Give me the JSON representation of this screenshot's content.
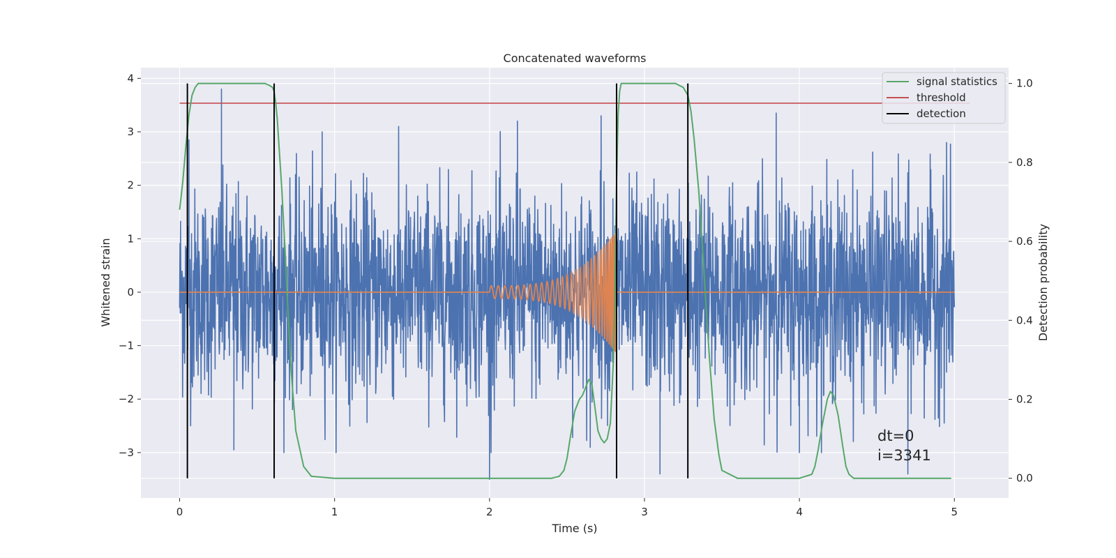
{
  "chart_data": {
    "type": "line",
    "title": "Concatenated waveforms",
    "xlabel": "Time (s)",
    "ylabel": "Whitened strain",
    "y2label": "Detection probability",
    "xlim": [
      -0.25,
      5.35
    ],
    "ylim": [
      -3.85,
      4.2
    ],
    "y2lim": [
      -0.05,
      1.04
    ],
    "x_ticks": [
      0,
      1,
      2,
      3,
      4,
      5
    ],
    "y_ticks": [
      -3,
      -2,
      -1,
      0,
      1,
      2,
      3,
      4
    ],
    "y2_ticks": [
      0.0,
      0.2,
      0.4,
      0.6,
      0.8,
      1.0
    ],
    "x_tick_labels": [
      "0",
      "1",
      "2",
      "3",
      "4",
      "5"
    ],
    "y_tick_labels": [
      "−3",
      "−2",
      "−1",
      "0",
      "1",
      "2",
      "3",
      "4"
    ],
    "y2_tick_labels": [
      "0.0",
      "0.2",
      "0.4",
      "0.6",
      "0.8",
      "1.0"
    ],
    "grid": true,
    "legend_position": "top-right",
    "legend": [
      {
        "label": "signal statistics",
        "color": "#55a868"
      },
      {
        "label": "threshold",
        "color": "#c44e52"
      },
      {
        "label": "detection",
        "color": "#000000"
      }
    ],
    "series": [
      {
        "kind": "noise",
        "axis": "left",
        "color": "#4c72b0",
        "x_range": [
          0,
          5
        ],
        "envelope_approx": [
          -2.0,
          2.0
        ],
        "peaks": [
          {
            "x": 0.27,
            "y": 3.8
          },
          {
            "x": 0.06,
            "y": 2.85
          },
          {
            "x": 0.92,
            "y": 3.0
          },
          {
            "x": 2.18,
            "y": 3.2
          },
          {
            "x": 2.72,
            "y": 3.3
          },
          {
            "x": 3.85,
            "y": 3.35
          },
          {
            "x": 4.95,
            "y": 2.8
          },
          {
            "x": 2.0,
            "y": -3.5
          },
          {
            "x": 3.1,
            "y": -3.4
          },
          {
            "x": 4.7,
            "y": -3.4
          },
          {
            "x": 0.35,
            "y": -2.95
          },
          {
            "x": 2.65,
            "y": -2.9
          },
          {
            "x": 4.0,
            "y": -3.0
          }
        ]
      },
      {
        "kind": "chirp",
        "axis": "left",
        "color": "#dd8452",
        "zero_until": 2.0,
        "chirp_range": [
          2.0,
          2.82
        ],
        "amplitude_start": 0.12,
        "amplitude_peak": 1.15,
        "zero_after": 2.82
      },
      {
        "name": "signal statistics",
        "axis": "right",
        "color": "#55a868",
        "x": [
          0.0,
          0.02,
          0.04,
          0.06,
          0.08,
          0.1,
          0.12,
          0.15,
          0.2,
          0.3,
          0.5,
          0.55,
          0.58,
          0.6,
          0.61,
          0.62,
          0.63,
          0.64,
          0.66,
          0.68,
          0.7,
          0.72,
          0.75,
          0.8,
          0.85,
          1.0,
          1.5,
          2.0,
          2.4,
          2.45,
          2.48,
          2.5,
          2.52,
          2.55,
          2.58,
          2.6,
          2.62,
          2.64,
          2.66,
          2.68,
          2.7,
          2.72,
          2.74,
          2.76,
          2.78,
          2.8,
          2.81,
          2.82,
          2.83,
          2.84,
          2.85,
          2.86,
          2.9,
          3.0,
          3.2,
          3.25,
          3.28,
          3.3,
          3.32,
          3.35,
          3.38,
          3.4,
          3.42,
          3.45,
          3.48,
          3.5,
          3.6,
          4.0,
          4.08,
          4.1,
          4.12,
          4.15,
          4.18,
          4.2,
          4.22,
          4.25,
          4.28,
          4.3,
          4.32,
          4.35,
          4.5,
          4.98
        ],
        "values": [
          0.68,
          0.75,
          0.84,
          0.92,
          0.97,
          0.99,
          1.0,
          1.0,
          1.0,
          1.0,
          1.0,
          1.0,
          0.995,
          0.99,
          0.98,
          0.95,
          0.91,
          0.85,
          0.73,
          0.58,
          0.42,
          0.27,
          0.12,
          0.03,
          0.005,
          0.0,
          0.0,
          0.0,
          0.0,
          0.005,
          0.02,
          0.05,
          0.1,
          0.17,
          0.2,
          0.21,
          0.23,
          0.25,
          0.24,
          0.18,
          0.12,
          0.1,
          0.09,
          0.1,
          0.14,
          0.3,
          0.5,
          0.75,
          0.92,
          0.98,
          1.0,
          1.0,
          1.0,
          1.0,
          1.0,
          0.99,
          0.97,
          0.93,
          0.86,
          0.73,
          0.55,
          0.42,
          0.3,
          0.15,
          0.06,
          0.02,
          0.0,
          0.0,
          0.01,
          0.03,
          0.07,
          0.14,
          0.2,
          0.22,
          0.21,
          0.16,
          0.08,
          0.03,
          0.01,
          0.0,
          0.0,
          0.0
        ]
      },
      {
        "name": "threshold",
        "axis": "right",
        "color": "#c44e52",
        "x": [
          0.0,
          5.1
        ],
        "values": [
          0.95,
          0.95
        ]
      },
      {
        "name": "detection",
        "axis": "right",
        "color": "#000000",
        "vlines_x": [
          0.05,
          0.61,
          2.82,
          3.28
        ],
        "vline_range": [
          0.0,
          1.0
        ]
      }
    ],
    "annotations": [
      "dt=0",
      "i=3341"
    ]
  }
}
